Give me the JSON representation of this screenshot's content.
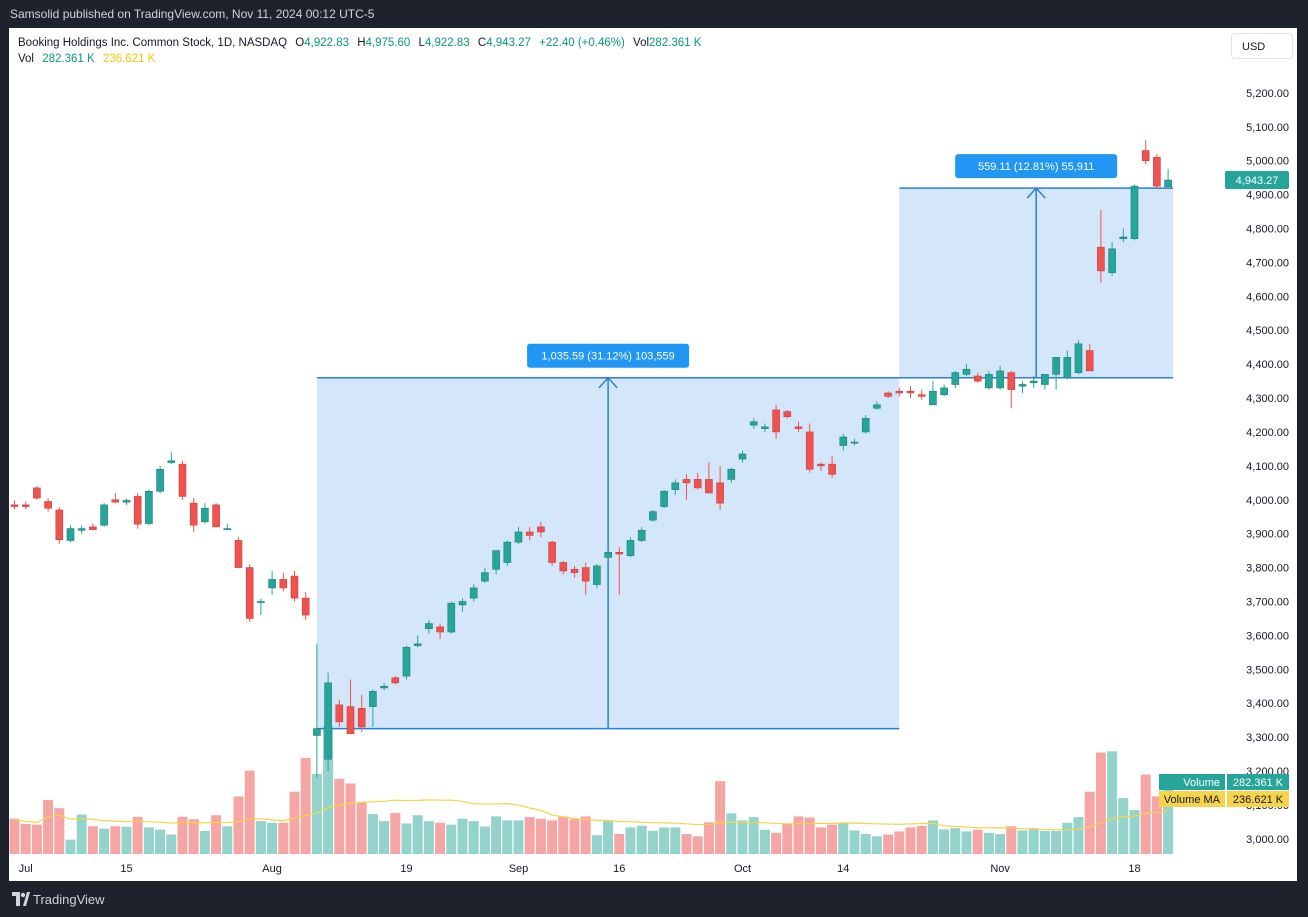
{
  "header": {
    "publish_text": "Samsolid published on TradingView.com, Nov 11, 2024 00:12 UTC-5"
  },
  "legend": {
    "symbol": "Booking Holdings Inc. Common Stock, 1D, NASDAQ",
    "open_label": "O",
    "open": "4,922.83",
    "high_label": "H",
    "high": "4,975.60",
    "low_label": "L",
    "low": "4,922.83",
    "close_label": "C",
    "close": "4,943.27",
    "change": "+22.40 (+0.46%)",
    "vol_label": "Vol",
    "vol": "282.361 K",
    "vol_row_label": "Vol",
    "vol_value": "282.361 K",
    "vol_ma_value": "236.621 K"
  },
  "currency_button": "USD",
  "footer": {
    "brand": "TradingView"
  },
  "colors": {
    "up": "#26a69a",
    "down": "#ef5350",
    "up_volume": "#94d3cc",
    "down_volume": "#f5a5a3",
    "volume_ma": "#f5d44c",
    "measure_fill": "#d4e7fa",
    "measure_line": "#2a7fd4",
    "badge": "#2196f3"
  },
  "chart_data": {
    "type": "candlestick",
    "title": "Booking Holdings Inc. Common Stock, 1D, NASDAQ",
    "currency": "USD",
    "y_axis": {
      "ylim": [
        2970,
        5300
      ],
      "scale": "linear",
      "tick_labels": [
        "3,000.00",
        "3,100.00",
        "3,200.00",
        "3,300.00",
        "3,400.00",
        "3,500.00",
        "3,600.00",
        "3,700.00",
        "3,800.00",
        "3,900.00",
        "4,000.00",
        "4,100.00",
        "4,200.00",
        "4,300.00",
        "4,400.00",
        "4,500.00",
        "4,600.00",
        "4,700.00",
        "4,800.00",
        "4,900.00",
        "5,000.00",
        "5,100.00",
        "5,200.00"
      ],
      "tick_values": [
        3000,
        3100,
        3200,
        3300,
        3400,
        3500,
        3600,
        3700,
        3800,
        3900,
        4000,
        4100,
        4200,
        4300,
        4400,
        4500,
        4600,
        4700,
        4800,
        4900,
        5000,
        5100,
        5200
      ]
    },
    "x_axis": {
      "labels": [
        {
          "text": "Jul",
          "date": "2024-07-01"
        },
        {
          "text": "15",
          "date": "2024-07-15"
        },
        {
          "text": "Aug",
          "date": "2024-08-01"
        },
        {
          "text": "19",
          "date": "2024-08-19"
        },
        {
          "text": "Sep",
          "date": "2024-09-03"
        },
        {
          "text": "16",
          "date": "2024-09-16"
        },
        {
          "text": "Oct",
          "date": "2024-10-01"
        },
        {
          "text": "14",
          "date": "2024-10-14"
        },
        {
          "text": "Nov",
          "date": "2024-11-01"
        },
        {
          "text": "18",
          "date": "2024-11-18"
        }
      ]
    },
    "grid": false,
    "candles": [
      {
        "date": "2024-06-28",
        "o": 3985,
        "h": 3998,
        "l": 3972,
        "c": 3980,
        "v": 150
      },
      {
        "date": "2024-07-01",
        "o": 3985,
        "h": 3995,
        "l": 3972,
        "c": 3980,
        "v": 128
      },
      {
        "date": "2024-07-02",
        "o": 4035,
        "h": 4040,
        "l": 4000,
        "c": 4005,
        "v": 125
      },
      {
        "date": "2024-07-03",
        "o": 3995,
        "h": 4005,
        "l": 3965,
        "c": 3975,
        "v": 230
      },
      {
        "date": "2024-07-05",
        "o": 3970,
        "h": 3978,
        "l": 3870,
        "c": 3882,
        "v": 195
      },
      {
        "date": "2024-07-08",
        "o": 3880,
        "h": 3925,
        "l": 3875,
        "c": 3915,
        "v": 61
      },
      {
        "date": "2024-07-09",
        "o": 3910,
        "h": 3925,
        "l": 3900,
        "c": 3915,
        "v": 168
      },
      {
        "date": "2024-07-10",
        "o": 3920,
        "h": 3930,
        "l": 3910,
        "c": 3912,
        "v": 118
      },
      {
        "date": "2024-07-11",
        "o": 3925,
        "h": 3990,
        "l": 3920,
        "c": 3985,
        "v": 108
      },
      {
        "date": "2024-07-12",
        "o": 4000,
        "h": 4020,
        "l": 3990,
        "c": 3993,
        "v": 118
      },
      {
        "date": "2024-07-15",
        "o": 3993,
        "h": 4003,
        "l": 3985,
        "c": 3998,
        "v": 116
      },
      {
        "date": "2024-07-16",
        "o": 4010,
        "h": 4020,
        "l": 3915,
        "c": 3928,
        "v": 158
      },
      {
        "date": "2024-07-17",
        "o": 3930,
        "h": 4030,
        "l": 3925,
        "c": 4025,
        "v": 113
      },
      {
        "date": "2024-07-18",
        "o": 4025,
        "h": 4100,
        "l": 4020,
        "c": 4090,
        "v": 104
      },
      {
        "date": "2024-07-19",
        "o": 4110,
        "h": 4140,
        "l": 4105,
        "c": 4115,
        "v": 83
      },
      {
        "date": "2024-07-22",
        "o": 4105,
        "h": 4115,
        "l": 4000,
        "c": 4010,
        "v": 158
      },
      {
        "date": "2024-07-23",
        "o": 3990,
        "h": 4005,
        "l": 3905,
        "c": 3925,
        "v": 148
      },
      {
        "date": "2024-07-24",
        "o": 3935,
        "h": 3990,
        "l": 3930,
        "c": 3975,
        "v": 98
      },
      {
        "date": "2024-07-25",
        "o": 3985,
        "h": 3990,
        "l": 3920,
        "c": 3920,
        "v": 165
      },
      {
        "date": "2024-07-26",
        "o": 3915,
        "h": 3930,
        "l": 3910,
        "c": 3915,
        "v": 118
      },
      {
        "date": "2024-07-29",
        "o": 3880,
        "h": 3890,
        "l": 3800,
        "c": 3800,
        "v": 245
      },
      {
        "date": "2024-07-30",
        "o": 3800,
        "h": 3810,
        "l": 3640,
        "c": 3650,
        "v": 355
      },
      {
        "date": "2024-07-31",
        "o": 3700,
        "h": 3708,
        "l": 3660,
        "c": 3700,
        "v": 140
      },
      {
        "date": "2024-08-01",
        "o": 3740,
        "h": 3790,
        "l": 3720,
        "c": 3765,
        "v": 133
      },
      {
        "date": "2024-08-02",
        "o": 3765,
        "h": 3785,
        "l": 3730,
        "c": 3740,
        "v": 133
      },
      {
        "date": "2024-08-05",
        "o": 3775,
        "h": 3790,
        "l": 3700,
        "c": 3710,
        "v": 265
      },
      {
        "date": "2024-08-06",
        "o": 3710,
        "h": 3728,
        "l": 3645,
        "c": 3660,
        "v": 408
      },
      {
        "date": "2024-08-07",
        "o": 3305,
        "h": 3575,
        "l": 3180,
        "c": 3325,
        "v": 340
      },
      {
        "date": "2024-08-08",
        "o": 3235,
        "h": 3490,
        "l": 3200,
        "c": 3460,
        "v": 545
      },
      {
        "date": "2024-08-09",
        "o": 3395,
        "h": 3410,
        "l": 3330,
        "c": 3345,
        "v": 320
      },
      {
        "date": "2024-08-12",
        "o": 3390,
        "h": 3470,
        "l": 3315,
        "c": 3310,
        "v": 300
      },
      {
        "date": "2024-08-13",
        "o": 3385,
        "h": 3425,
        "l": 3315,
        "c": 3330,
        "v": 220
      },
      {
        "date": "2024-08-14",
        "o": 3390,
        "h": 3440,
        "l": 3330,
        "c": 3435,
        "v": 170
      },
      {
        "date": "2024-08-15",
        "o": 3445,
        "h": 3460,
        "l": 3438,
        "c": 3450,
        "v": 140
      },
      {
        "date": "2024-08-16",
        "o": 3475,
        "h": 3480,
        "l": 3455,
        "c": 3460,
        "v": 175
      },
      {
        "date": "2024-08-19",
        "o": 3480,
        "h": 3570,
        "l": 3470,
        "c": 3565,
        "v": 130
      },
      {
        "date": "2024-08-20",
        "o": 3570,
        "h": 3600,
        "l": 3565,
        "c": 3575,
        "v": 165
      },
      {
        "date": "2024-08-21",
        "o": 3620,
        "h": 3645,
        "l": 3605,
        "c": 3635,
        "v": 140
      },
      {
        "date": "2024-08-22",
        "o": 3625,
        "h": 3635,
        "l": 3590,
        "c": 3610,
        "v": 133
      },
      {
        "date": "2024-08-23",
        "o": 3610,
        "h": 3700,
        "l": 3605,
        "c": 3695,
        "v": 125
      },
      {
        "date": "2024-08-26",
        "o": 3690,
        "h": 3710,
        "l": 3670,
        "c": 3700,
        "v": 150
      },
      {
        "date": "2024-08-27",
        "o": 3710,
        "h": 3750,
        "l": 3700,
        "c": 3740,
        "v": 140
      },
      {
        "date": "2024-08-28",
        "o": 3760,
        "h": 3800,
        "l": 3755,
        "c": 3785,
        "v": 117
      },
      {
        "date": "2024-08-29",
        "o": 3795,
        "h": 3840,
        "l": 3780,
        "c": 3850,
        "v": 160
      },
      {
        "date": "2024-08-30",
        "o": 3815,
        "h": 3880,
        "l": 3805,
        "c": 3875,
        "v": 143
      },
      {
        "date": "2024-09-03",
        "o": 3875,
        "h": 3920,
        "l": 3870,
        "c": 3905,
        "v": 143
      },
      {
        "date": "2024-09-04",
        "o": 3905,
        "h": 3920,
        "l": 3880,
        "c": 3895,
        "v": 157
      },
      {
        "date": "2024-09-05",
        "o": 3920,
        "h": 3935,
        "l": 3890,
        "c": 3905,
        "v": 150
      },
      {
        "date": "2024-09-06",
        "o": 3875,
        "h": 3880,
        "l": 3805,
        "c": 3815,
        "v": 143
      },
      {
        "date": "2024-09-09",
        "o": 3815,
        "h": 3820,
        "l": 3780,
        "c": 3790,
        "v": 160
      },
      {
        "date": "2024-09-10",
        "o": 3795,
        "h": 3805,
        "l": 3770,
        "c": 3785,
        "v": 148
      },
      {
        "date": "2024-09-11",
        "o": 3800,
        "h": 3815,
        "l": 3720,
        "c": 3760,
        "v": 160
      },
      {
        "date": "2024-09-12",
        "o": 3750,
        "h": 3810,
        "l": 3740,
        "c": 3805,
        "v": 80
      },
      {
        "date": "2024-09-13",
        "o": 3830,
        "h": 3850,
        "l": 3815,
        "c": 3845,
        "v": 140
      },
      {
        "date": "2024-09-16",
        "o": 3845,
        "h": 3860,
        "l": 3720,
        "c": 3840,
        "v": 85
      },
      {
        "date": "2024-09-17",
        "o": 3835,
        "h": 3890,
        "l": 3830,
        "c": 3880,
        "v": 113
      },
      {
        "date": "2024-09-18",
        "o": 3880,
        "h": 3920,
        "l": 3875,
        "c": 3910,
        "v": 120
      },
      {
        "date": "2024-09-19",
        "o": 3940,
        "h": 3970,
        "l": 3935,
        "c": 3965,
        "v": 99
      },
      {
        "date": "2024-09-20",
        "o": 3980,
        "h": 4030,
        "l": 3975,
        "c": 4025,
        "v": 113
      },
      {
        "date": "2024-09-23",
        "o": 4030,
        "h": 4060,
        "l": 4015,
        "c": 4050,
        "v": 113
      },
      {
        "date": "2024-09-24",
        "o": 4060,
        "h": 4075,
        "l": 4000,
        "c": 4050,
        "v": 85
      },
      {
        "date": "2024-09-25",
        "o": 4060,
        "h": 4080,
        "l": 4030,
        "c": 4035,
        "v": 75
      },
      {
        "date": "2024-09-26",
        "o": 4060,
        "h": 4110,
        "l": 4020,
        "c": 4020,
        "v": 135
      },
      {
        "date": "2024-09-27",
        "o": 4050,
        "h": 4100,
        "l": 3970,
        "c": 3990,
        "v": 310
      },
      {
        "date": "2024-09-30",
        "o": 4060,
        "h": 4095,
        "l": 4050,
        "c": 4090,
        "v": 173
      },
      {
        "date": "2024-10-01",
        "o": 4120,
        "h": 4145,
        "l": 4110,
        "c": 4135,
        "v": 143
      },
      {
        "date": "2024-10-02",
        "o": 4220,
        "h": 4240,
        "l": 4210,
        "c": 4230,
        "v": 157
      },
      {
        "date": "2024-10-03",
        "o": 4210,
        "h": 4225,
        "l": 4200,
        "c": 4215,
        "v": 103
      },
      {
        "date": "2024-10-04",
        "o": 4265,
        "h": 4280,
        "l": 4180,
        "c": 4200,
        "v": 90
      },
      {
        "date": "2024-10-07",
        "o": 4260,
        "h": 4265,
        "l": 4240,
        "c": 4245,
        "v": 130
      },
      {
        "date": "2024-10-08",
        "o": 4215,
        "h": 4230,
        "l": 4200,
        "c": 4210,
        "v": 160
      },
      {
        "date": "2024-10-09",
        "o": 4200,
        "h": 4225,
        "l": 4080,
        "c": 4090,
        "v": 155
      },
      {
        "date": "2024-10-10",
        "o": 4105,
        "h": 4110,
        "l": 4085,
        "c": 4100,
        "v": 113
      },
      {
        "date": "2024-10-11",
        "o": 4105,
        "h": 4130,
        "l": 4065,
        "c": 4075,
        "v": 125
      },
      {
        "date": "2024-10-14",
        "o": 4160,
        "h": 4195,
        "l": 4145,
        "c": 4185,
        "v": 133
      },
      {
        "date": "2024-10-15",
        "o": 4170,
        "h": 4180,
        "l": 4160,
        "c": 4170,
        "v": 100
      },
      {
        "date": "2024-10-16",
        "o": 4200,
        "h": 4250,
        "l": 4195,
        "c": 4240,
        "v": 85
      },
      {
        "date": "2024-10-17",
        "o": 4270,
        "h": 4290,
        "l": 4265,
        "c": 4280,
        "v": 75
      },
      {
        "date": "2024-10-18",
        "o": 4315,
        "h": 4320,
        "l": 4300,
        "c": 4305,
        "v": 83
      },
      {
        "date": "2024-10-21",
        "o": 4320,
        "h": 4330,
        "l": 4305,
        "c": 4315,
        "v": 96
      },
      {
        "date": "2024-10-22",
        "o": 4320,
        "h": 4335,
        "l": 4300,
        "c": 4315,
        "v": 113
      },
      {
        "date": "2024-10-23",
        "o": 4310,
        "h": 4325,
        "l": 4295,
        "c": 4305,
        "v": 120
      },
      {
        "date": "2024-10-24",
        "o": 4280,
        "h": 4350,
        "l": 4280,
        "c": 4320,
        "v": 143
      },
      {
        "date": "2024-10-25",
        "o": 4310,
        "h": 4340,
        "l": 4305,
        "c": 4330,
        "v": 105
      },
      {
        "date": "2024-10-28",
        "o": 4340,
        "h": 4380,
        "l": 4330,
        "c": 4375,
        "v": 110
      },
      {
        "date": "2024-10-29",
        "o": 4370,
        "h": 4400,
        "l": 4365,
        "c": 4385,
        "v": 96
      },
      {
        "date": "2024-10-30",
        "o": 4365,
        "h": 4375,
        "l": 4345,
        "c": 4350,
        "v": 103
      },
      {
        "date": "2024-10-31",
        "o": 4330,
        "h": 4380,
        "l": 4325,
        "c": 4370,
        "v": 90
      },
      {
        "date": "2024-11-01",
        "o": 4330,
        "h": 4395,
        "l": 4325,
        "c": 4380,
        "v": 85
      },
      {
        "date": "2024-11-04",
        "o": 4375,
        "h": 4380,
        "l": 4270,
        "c": 4325,
        "v": 118
      },
      {
        "date": "2024-11-05",
        "o": 4335,
        "h": 4350,
        "l": 4315,
        "c": 4340,
        "v": 100
      },
      {
        "date": "2024-11-06",
        "o": 4345,
        "h": 4365,
        "l": 4330,
        "c": 4350,
        "v": 110
      },
      {
        "date": "2024-11-07",
        "o": 4340,
        "h": 4360,
        "l": 4325,
        "c": 4370,
        "v": 98
      },
      {
        "date": "2024-11-08",
        "o": 4370,
        "h": 4405,
        "l": 4325,
        "c": 4420,
        "v": 98
      },
      {
        "date": "2024-11-08b",
        "o": 4360,
        "h": 4440,
        "l": 4355,
        "c": 4420,
        "v": 133
      },
      {
        "date": "2024-11-11",
        "o": 4375,
        "h": 4470,
        "l": 4370,
        "c": 4460,
        "v": 157
      },
      {
        "date": "2024-11-12",
        "o": 4440,
        "h": 4460,
        "l": 4380,
        "c": 4380,
        "v": 265
      },
      {
        "date": "2024-11-13",
        "o": 4745,
        "h": 4855,
        "l": 4640,
        "c": 4675,
        "v": 432
      },
      {
        "date": "2024-11-14",
        "o": 4670,
        "h": 4760,
        "l": 4660,
        "c": 4740,
        "v": 437
      },
      {
        "date": "2024-11-15",
        "o": 4770,
        "h": 4800,
        "l": 4760,
        "c": 4775,
        "v": 238
      },
      {
        "date": "2024-11-18",
        "o": 4770,
        "h": 4930,
        "l": 4765,
        "c": 4925,
        "v": 187
      },
      {
        "date": "2024-11-19",
        "o": 5030,
        "h": 5060,
        "l": 4990,
        "c": 5000,
        "v": 338
      },
      {
        "date": "2024-11-20",
        "o": 5010,
        "h": 5020,
        "l": 4920,
        "c": 4925,
        "v": 245
      },
      {
        "date": "2024-11-21",
        "o": 4923,
        "h": 4976,
        "l": 4923,
        "c": 4943,
        "v": 282
      }
    ],
    "volume_ma_reference": {
      "value_k": 236.621
    },
    "series": [
      {
        "name": "Volume",
        "value": "282.361 K"
      },
      {
        "name": "Volume MA",
        "value": "236.621 K"
      }
    ],
    "measurements": [
      {
        "label": "1,035.59 (31.12%) 103,559",
        "from": 3325,
        "to": 4360,
        "start": "2024-08-07",
        "end": "2024-10-21"
      },
      {
        "label": "559.11 (12.81%) 55,911",
        "from": 4360,
        "to": 4919,
        "start": "2024-10-21",
        "end": "2024-11-21"
      }
    ],
    "last_price_label": "4,943.27",
    "volume_tags": [
      {
        "name": "Volume",
        "value": "282.361 K",
        "color": "#26a69a"
      },
      {
        "name": "Volume MA",
        "value": "236.621 K",
        "color": "#f5d44c"
      }
    ]
  }
}
